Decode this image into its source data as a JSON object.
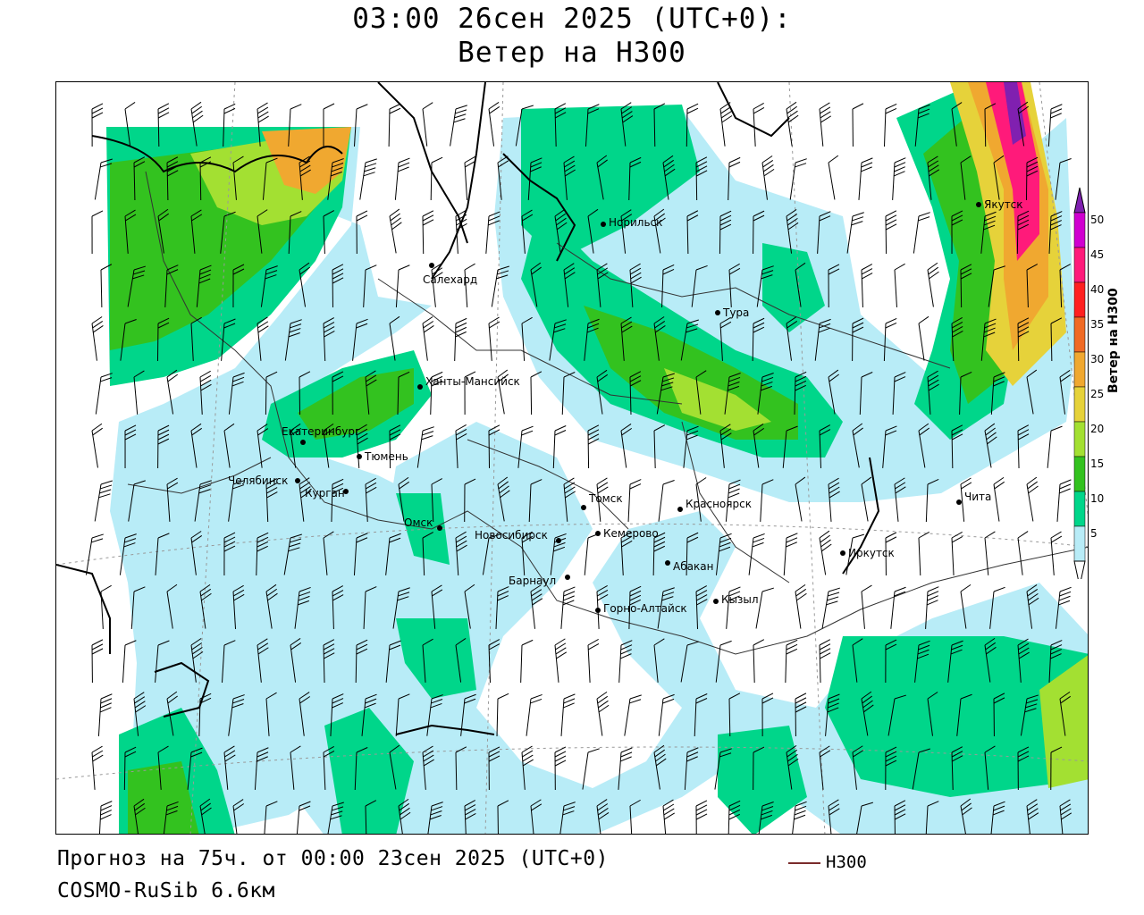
{
  "header": {
    "title_line1": "03:00 26сен 2025 (UTC+0):",
    "title_line2": "Ветер на H300"
  },
  "footer": {
    "forecast": "Прогноз на 75ч. от 00:00 23сен 2025 (UTC+0)",
    "model": "COSMO-RuSib 6.6км",
    "contour_key": "H300"
  },
  "legend": {
    "title": "Ветер на H300",
    "ticks": [
      "5",
      "10",
      "15",
      "20",
      "25",
      "30",
      "35",
      "40",
      "45",
      "50"
    ],
    "colors": [
      "#ffffff",
      "#b8ecf7",
      "#00d68a",
      "#33c21f",
      "#a3e032",
      "#e6d23a",
      "#f0a830",
      "#f06a24",
      "#ff2020",
      "#ff1a7a",
      "#d000d0",
      "#8020b0"
    ]
  },
  "cities": [
    {
      "name": "Норильск"
    },
    {
      "name": "Салехард"
    },
    {
      "name": "Тура"
    },
    {
      "name": "Якутск"
    },
    {
      "name": "Ханты-Мансийск"
    },
    {
      "name": "Екатеринбург"
    },
    {
      "name": "Тюмень"
    },
    {
      "name": "Челябинск"
    },
    {
      "name": "Курган"
    },
    {
      "name": "Омск"
    },
    {
      "name": "Новосибирск"
    },
    {
      "name": "Томск"
    },
    {
      "name": "Кемерово"
    },
    {
      "name": "Красноярск"
    },
    {
      "name": "Барнаул"
    },
    {
      "name": "Абакан"
    },
    {
      "name": "Горно-Алтайск"
    },
    {
      "name": "Кызыл"
    },
    {
      "name": "Иркутск"
    },
    {
      "name": "Чита"
    }
  ]
}
